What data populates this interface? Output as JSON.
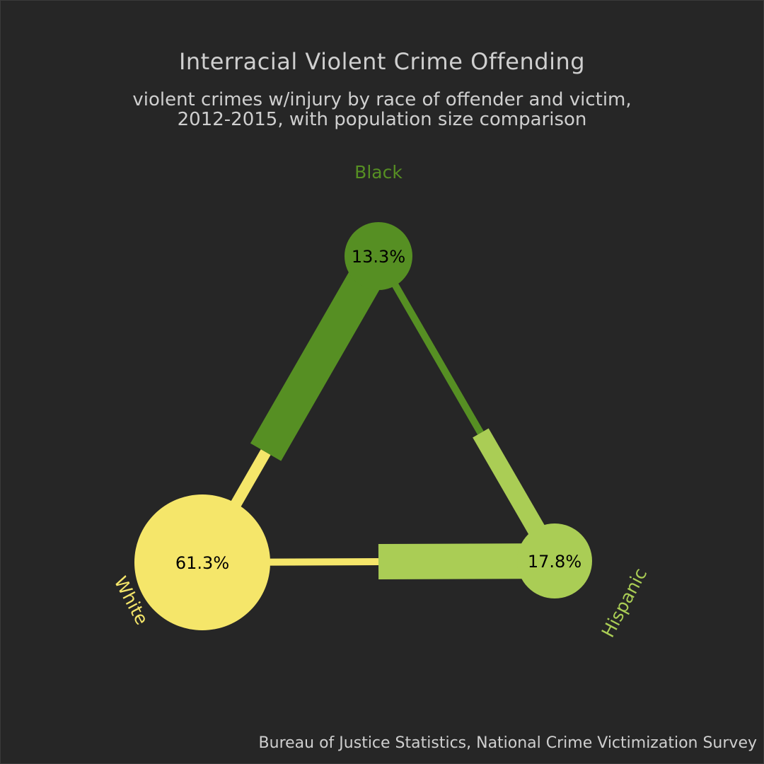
{
  "title": "Interracial Violent Crime Offending",
  "subtitle": "violent crimes w/injury by race of offender and victim,\n2012-2015, with population size comparison",
  "source": "Bureau of Justice Statistics, National Crime Victimization Survey",
  "colors": {
    "background": "#262626",
    "text": "#cfcfcf",
    "black": "#568f23",
    "white": "#f5e66a",
    "hispanic": "#aacd55"
  },
  "chart_data": {
    "type": "network",
    "nodes": [
      {
        "id": "black",
        "name": "Black",
        "population_pct": 13.3,
        "pct_label": "13.3%",
        "color": "#568f23"
      },
      {
        "id": "white",
        "name": "White",
        "population_pct": 61.3,
        "pct_label": "61.3%",
        "color": "#f5e66a"
      },
      {
        "id": "hispanic",
        "name": "Hispanic",
        "population_pct": 17.8,
        "pct_label": "17.8%",
        "color": "#aacd55"
      }
    ],
    "edges": [
      {
        "between": [
          "black",
          "white"
        ],
        "segments": [
          {
            "color_of": "black",
            "share": 0.64,
            "width_end": 50
          },
          {
            "color_of": "white",
            "share": 0.36,
            "width_end": 16
          }
        ]
      },
      {
        "between": [
          "black",
          "hispanic"
        ],
        "segments": [
          {
            "color_of": "black",
            "share": 0.58,
            "width_end": 10
          },
          {
            "color_of": "hispanic",
            "share": 0.42,
            "width_end": 26
          }
        ]
      },
      {
        "between": [
          "white",
          "hispanic"
        ],
        "segments": [
          {
            "color_of": "white",
            "share": 0.5,
            "width_end": 10
          },
          {
            "color_of": "hispanic",
            "share": 0.5,
            "width_end": 50
          }
        ]
      }
    ]
  }
}
